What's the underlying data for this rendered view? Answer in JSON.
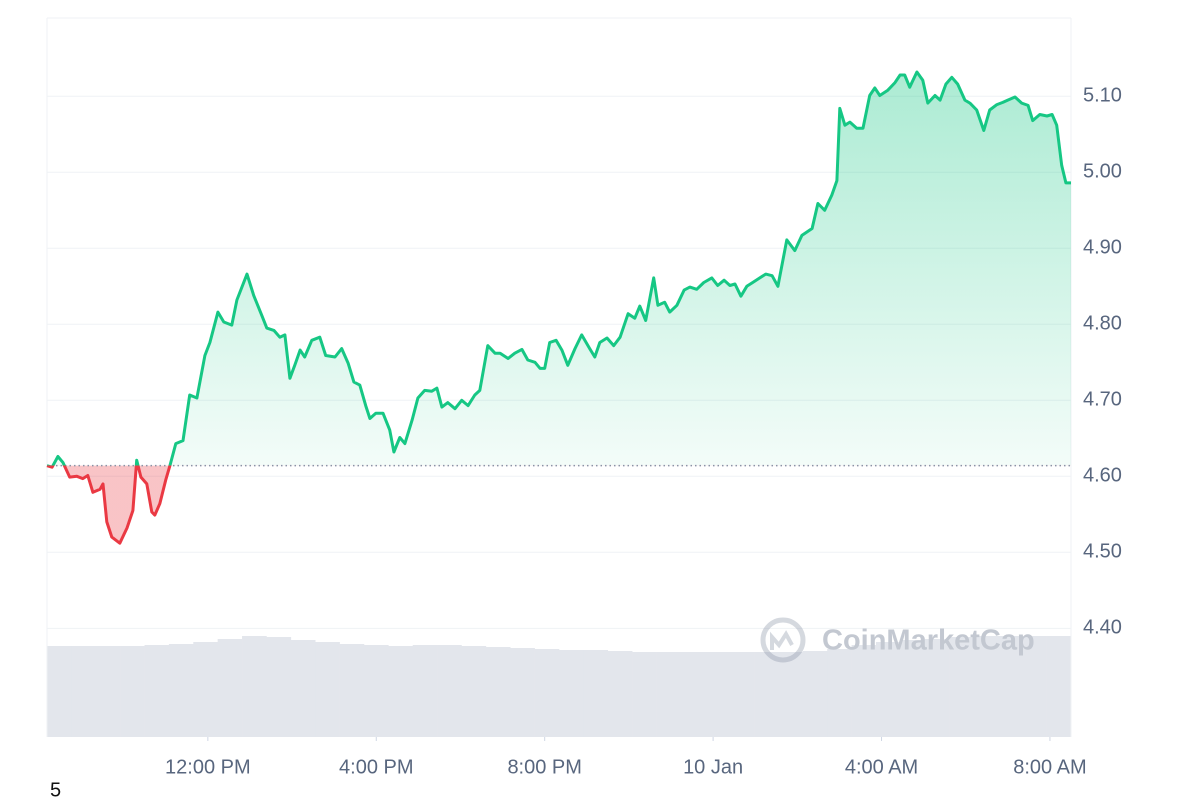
{
  "chart_data": {
    "type": "area",
    "x": [
      8.18,
      8.3,
      8.44,
      8.56,
      8.72,
      8.89,
      9.03,
      9.15,
      9.27,
      9.44,
      9.51,
      9.6,
      9.72,
      9.91,
      10.08,
      10.22,
      10.31,
      10.41,
      10.55,
      10.67,
      10.74,
      10.86,
      11.0,
      11.1,
      11.24,
      11.41,
      11.57,
      11.74,
      11.93,
      12.05,
      12.24,
      12.38,
      12.57,
      12.69,
      12.93,
      13.09,
      13.28,
      13.4,
      13.57,
      13.71,
      13.83,
      13.95,
      14.07,
      14.19,
      14.3,
      14.47,
      14.66,
      14.8,
      15.02,
      15.18,
      15.33,
      15.47,
      15.61,
      15.75,
      15.85,
      15.99,
      16.16,
      16.32,
      16.42,
      16.56,
      16.68,
      16.85,
      16.99,
      17.15,
      17.32,
      17.44,
      17.56,
      17.7,
      17.87,
      18.03,
      18.18,
      18.34,
      18.46,
      18.65,
      18.82,
      18.94,
      19.13,
      19.29,
      19.46,
      19.6,
      19.77,
      19.89,
      20.0,
      20.12,
      20.27,
      20.41,
      20.55,
      20.72,
      20.88,
      21.07,
      21.19,
      21.31,
      21.48,
      21.64,
      21.79,
      21.98,
      22.14,
      22.26,
      22.4,
      22.59,
      22.69,
      22.85,
      22.97,
      23.14,
      23.31,
      23.45,
      23.61,
      23.78,
      23.97,
      24.11,
      24.26,
      24.4,
      24.52,
      24.66,
      24.8,
      24.94,
      25.11,
      25.25,
      25.4,
      25.54,
      25.75,
      25.94,
      26.11,
      26.35,
      26.49,
      26.65,
      26.82,
      26.94,
      27.01,
      27.13,
      27.25,
      27.41,
      27.56,
      27.72,
      27.84,
      27.96,
      28.15,
      28.32,
      28.44,
      28.55,
      28.67,
      28.84,
      28.98,
      29.1,
      29.27,
      29.39,
      29.53,
      29.67,
      29.81,
      29.98,
      30.1,
      30.26,
      30.43,
      30.57,
      30.74,
      30.88,
      31.0,
      31.17,
      31.33,
      31.48,
      31.59,
      31.76,
      31.93,
      32.05,
      32.16,
      32.28,
      32.38,
      32.5
    ],
    "values": [
      4.614,
      4.612,
      4.626,
      4.618,
      4.599,
      4.6,
      4.597,
      4.601,
      4.579,
      4.583,
      4.59,
      4.54,
      4.52,
      4.512,
      4.532,
      4.555,
      4.621,
      4.599,
      4.59,
      4.553,
      4.549,
      4.564,
      4.595,
      4.614,
      4.643,
      4.647,
      4.707,
      4.703,
      4.759,
      4.776,
      4.816,
      4.803,
      4.799,
      4.832,
      4.866,
      4.838,
      4.812,
      4.795,
      4.792,
      4.783,
      4.786,
      4.729,
      4.747,
      4.766,
      4.757,
      4.779,
      4.783,
      4.759,
      4.757,
      4.768,
      4.749,
      4.724,
      4.72,
      4.693,
      4.676,
      4.683,
      4.683,
      4.661,
      4.632,
      4.651,
      4.643,
      4.674,
      4.703,
      4.713,
      4.712,
      4.716,
      4.691,
      4.697,
      4.689,
      4.7,
      4.693,
      4.707,
      4.713,
      4.772,
      4.762,
      4.762,
      4.755,
      4.762,
      4.767,
      4.753,
      4.75,
      4.742,
      4.742,
      4.776,
      4.779,
      4.766,
      4.746,
      4.768,
      4.786,
      4.768,
      4.757,
      4.776,
      4.782,
      4.772,
      4.783,
      4.814,
      4.808,
      4.824,
      4.805,
      4.861,
      4.825,
      4.829,
      4.816,
      4.825,
      4.845,
      4.849,
      4.846,
      4.855,
      4.861,
      4.851,
      4.858,
      4.851,
      4.853,
      4.837,
      4.85,
      4.855,
      4.861,
      4.866,
      4.864,
      4.85,
      4.911,
      4.897,
      4.917,
      4.926,
      4.959,
      4.95,
      4.97,
      4.989,
      5.084,
      5.062,
      5.066,
      5.058,
      5.058,
      5.101,
      5.111,
      5.101,
      5.108,
      5.118,
      5.128,
      5.128,
      5.112,
      5.132,
      5.121,
      5.091,
      5.101,
      5.095,
      5.116,
      5.125,
      5.116,
      5.095,
      5.091,
      5.082,
      5.055,
      5.082,
      5.089,
      5.092,
      5.095,
      5.099,
      5.091,
      5.088,
      5.068,
      5.076,
      5.074,
      5.076,
      5.062,
      5.009,
      4.986,
      4.986
    ],
    "color": "#16c784",
    "negative_color": "#ea3943",
    "baseline": 4.614,
    "xlim": [
      8.18,
      32.5
    ],
    "xticks": [
      {
        "value": 12,
        "label": "12:00 PM"
      },
      {
        "value": 16,
        "label": "4:00 PM"
      },
      {
        "value": 20,
        "label": "8:00 PM"
      },
      {
        "value": 24,
        "label": "10 Jan"
      },
      {
        "value": 28,
        "label": "4:00 AM"
      },
      {
        "value": 32,
        "label": "8:00 AM"
      }
    ],
    "ylim": [
      4.257,
      5.203
    ],
    "yticks": [
      {
        "value": 4.4,
        "label": "4.40"
      },
      {
        "value": 4.5,
        "label": "4.50"
      },
      {
        "value": 4.6,
        "label": "4.60"
      },
      {
        "value": 4.7,
        "label": "4.70"
      },
      {
        "value": 4.8,
        "label": "4.80"
      },
      {
        "value": 4.9,
        "label": "4.90"
      },
      {
        "value": 5.0,
        "label": "5.00"
      },
      {
        "value": 5.1,
        "label": "5.10"
      }
    ],
    "grid": true,
    "volume": {
      "values": [
        91,
        91,
        91,
        91,
        92,
        93,
        95,
        98,
        101,
        100,
        97,
        95,
        93,
        92,
        91,
        92,
        92,
        91,
        90,
        89,
        88,
        87,
        87,
        86,
        85,
        85,
        85,
        85,
        85,
        85,
        85,
        86,
        88,
        92,
        95,
        97,
        98,
        100,
        101,
        101,
        101,
        101
      ],
      "ylim": [
        0,
        110
      ],
      "color": "#e3e6ec"
    },
    "watermark": "CoinMarketCap",
    "corner_label": "5"
  }
}
